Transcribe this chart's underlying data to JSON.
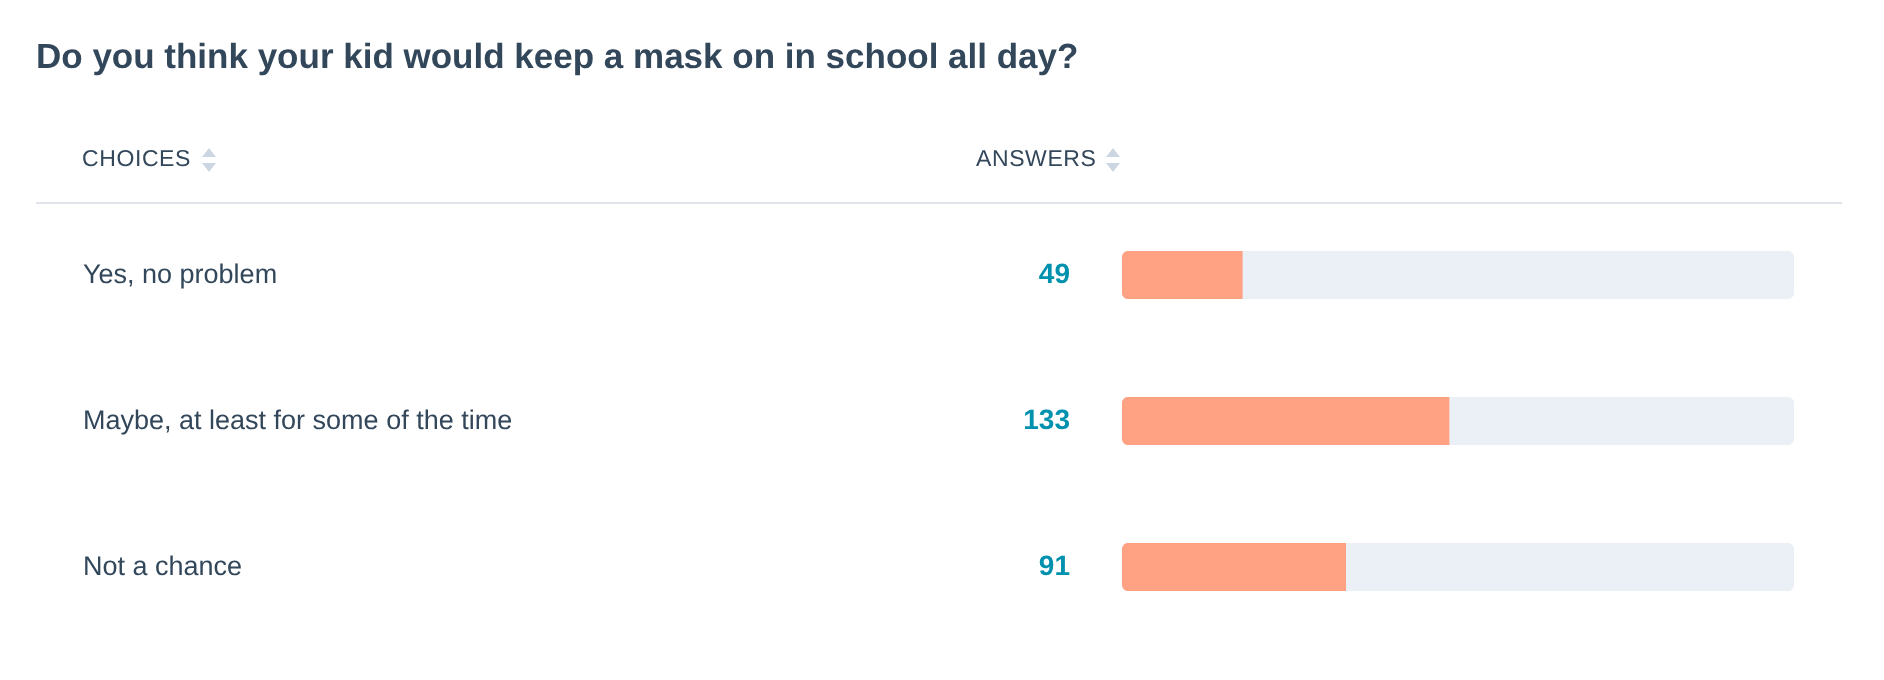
{
  "chart_data": {
    "type": "bar",
    "orientation": "horizontal",
    "title": "Do you think your kid would keep a mask on in school all day?",
    "ylabel": "CHOICES",
    "xlabel": "ANSWERS",
    "categories": [
      "Yes, no problem",
      "Maybe, at least for some of the time",
      "Not a chance"
    ],
    "values": [
      49,
      133,
      91
    ],
    "color": "#ffa183",
    "xlim": [
      0,
      273
    ],
    "data_labels": true
  }
}
